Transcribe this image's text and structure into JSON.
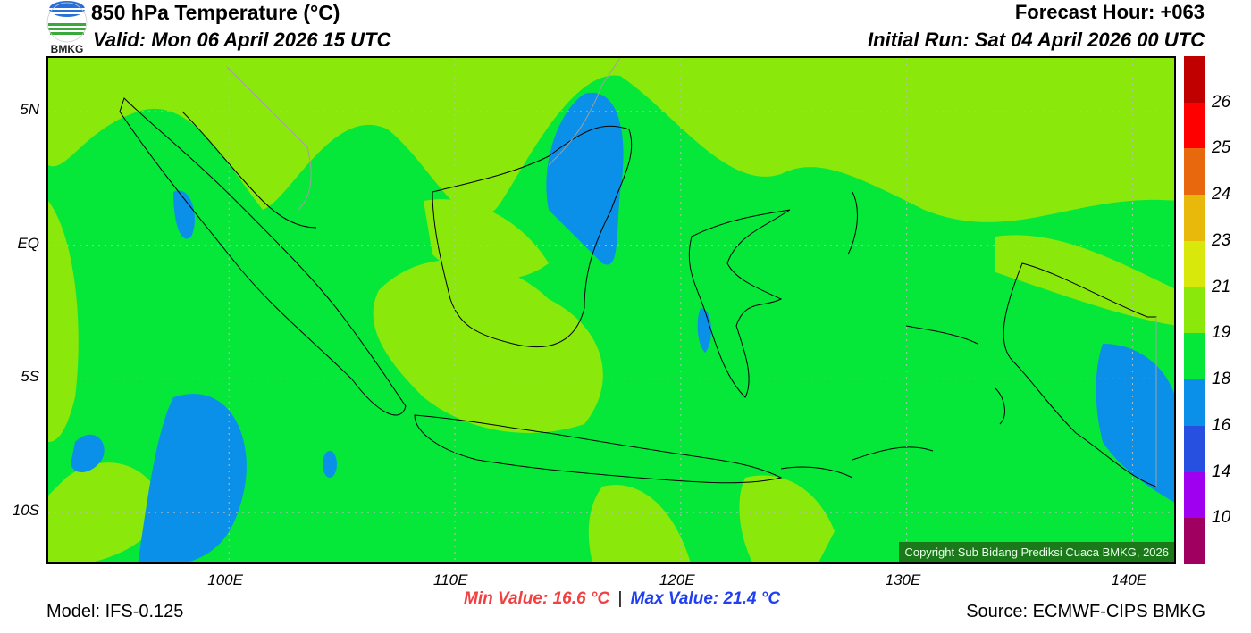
{
  "header": {
    "title": "850 hPa Temperature (°C)",
    "valid": "Valid: Mon 06 April 2026 15 UTC",
    "forecast_hour": "Forecast Hour: +063",
    "initial_run": "Initial Run: Sat 04 April 2026 00 UTC",
    "logo_text": "BMKG"
  },
  "map": {
    "lon_range": [
      92,
      142
    ],
    "lat_range": [
      -12,
      7
    ],
    "lon_ticks": [
      {
        "v": 100,
        "label": "100E"
      },
      {
        "v": 110,
        "label": "110E"
      },
      {
        "v": 120,
        "label": "120E"
      },
      {
        "v": 130,
        "label": "130E"
      },
      {
        "v": 140,
        "label": "140E"
      }
    ],
    "lat_ticks": [
      {
        "v": 5,
        "label": "5N"
      },
      {
        "v": 0,
        "label": "EQ"
      },
      {
        "v": -5,
        "label": "5S"
      },
      {
        "v": -10,
        "label": "10S"
      }
    ],
    "field_colors": {
      "base": "#05e83a",
      "warm": "#8ae80a",
      "cool": "#0a90e8",
      "coast": "#000000",
      "border": "#a0a0a0"
    },
    "copyright": "Copyright Sub Bidang Prediksi Cuaca BMKG, 2026"
  },
  "colorbar": {
    "colors": [
      "#c00000",
      "#ff0000",
      "#e8680e",
      "#e8b80a",
      "#d8e80a",
      "#8ae80a",
      "#05e83a",
      "#0a90e8",
      "#2850e0",
      "#a000f0",
      "#a00060"
    ],
    "labels": [
      "26",
      "25",
      "24",
      "23",
      "21",
      "19",
      "18",
      "16",
      "14",
      "10"
    ]
  },
  "footer": {
    "min_value": "Min Value: 16.6 °C",
    "separator": "|",
    "max_value": "Max Value: 21.4 °C",
    "model": "Model: IFS-0.125",
    "source": "Source: ECMWF-CIPS BMKG"
  }
}
